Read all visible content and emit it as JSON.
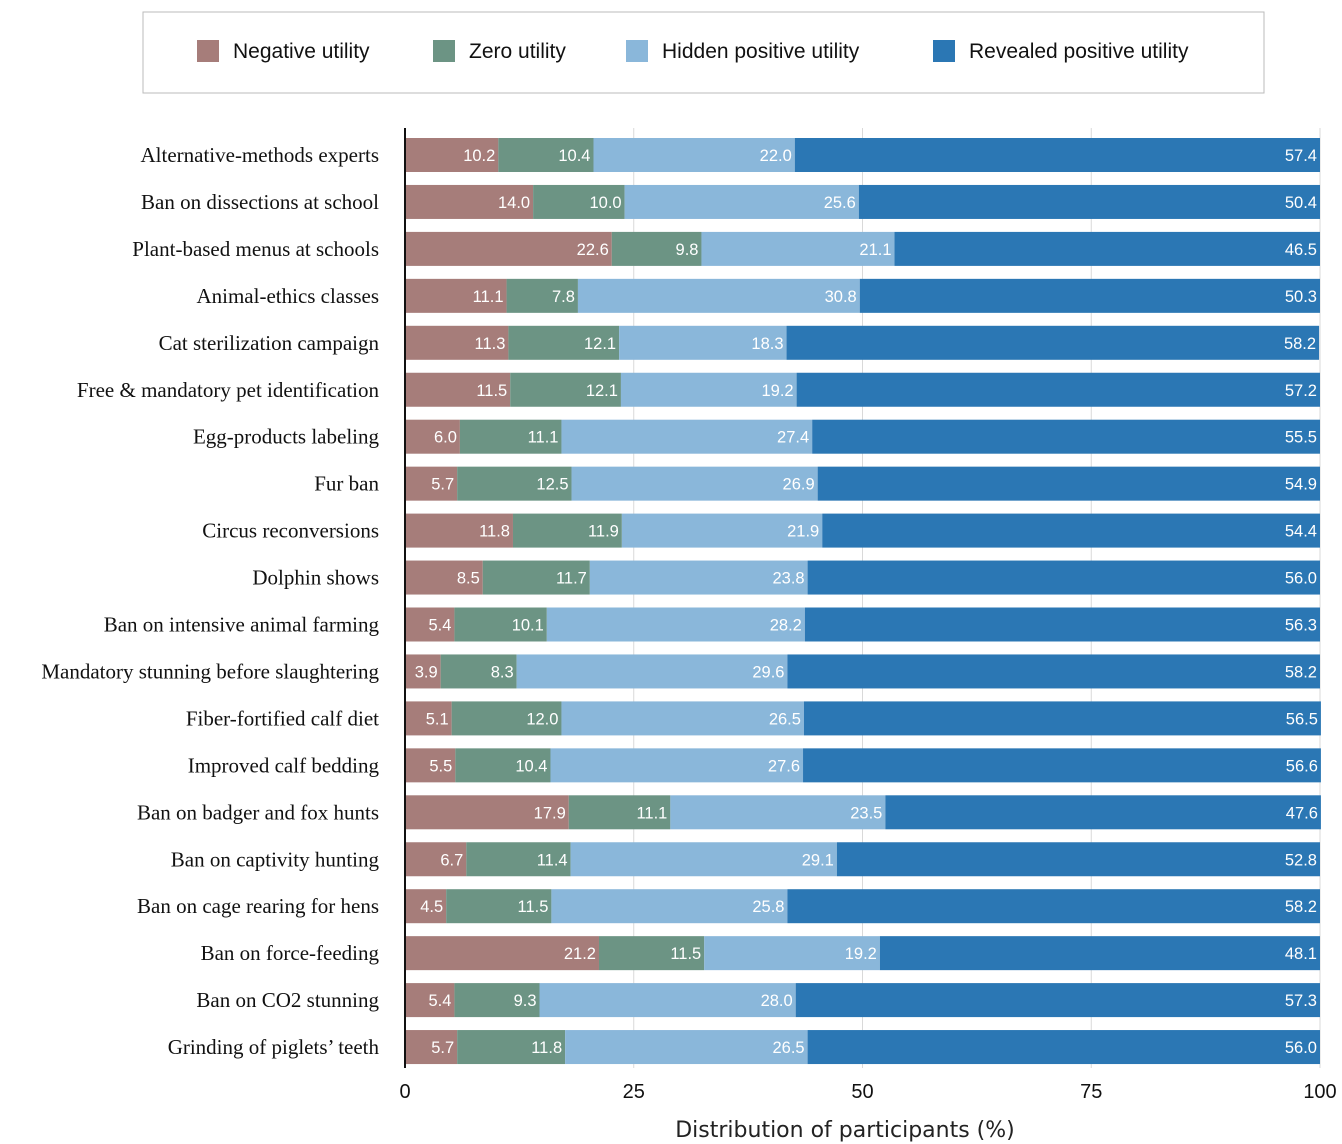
{
  "chart_data": {
    "type": "bar",
    "orientation": "horizontal",
    "stacked": true,
    "categories": [
      "Alternative-methods experts",
      "Ban on dissections at school",
      "Plant-based menus at schools",
      "Animal-ethics classes",
      "Cat sterilization campaign",
      "Free & mandatory pet identification",
      "Egg-products labeling",
      "Fur ban",
      "Circus reconversions",
      "Dolphin shows",
      "Ban on intensive animal farming",
      "Mandatory stunning before slaughtering",
      "Fiber-fortified calf diet",
      "Improved calf bedding",
      "Ban on badger and fox hunts",
      "Ban on captivity hunting",
      "Ban on cage rearing for hens",
      "Ban on force-feeding ",
      "Ban on CO2 stunning",
      "Grinding of piglets’ teeth"
    ],
    "series": [
      {
        "name": "Negative utility",
        "color": "#a67d7a",
        "values": [
          10.2,
          14.0,
          22.6,
          11.1,
          11.3,
          11.5,
          6.0,
          5.7,
          11.8,
          8.5,
          5.4,
          3.9,
          5.1,
          5.5,
          17.9,
          6.7,
          4.5,
          21.2,
          5.4,
          5.7
        ]
      },
      {
        "name": "Zero utility",
        "color": "#6c9484",
        "values": [
          10.4,
          10.0,
          9.8,
          7.8,
          12.1,
          12.1,
          11.1,
          12.5,
          11.9,
          11.7,
          10.1,
          8.3,
          12.0,
          10.4,
          11.1,
          11.4,
          11.5,
          11.5,
          9.3,
          11.8
        ]
      },
      {
        "name": "Hidden positive utility",
        "color": "#8ab7da",
        "values": [
          22.0,
          25.6,
          21.1,
          30.8,
          18.3,
          19.2,
          27.4,
          26.9,
          21.9,
          23.8,
          28.2,
          29.6,
          26.5,
          27.6,
          23.5,
          29.1,
          25.8,
          19.2,
          28.0,
          26.5
        ]
      },
      {
        "name": "Revealed positive utility",
        "color": "#2b77b4",
        "values": [
          57.4,
          50.4,
          46.5,
          50.3,
          58.2,
          57.2,
          55.5,
          54.9,
          54.4,
          56.0,
          56.3,
          58.2,
          56.5,
          56.6,
          47.6,
          52.8,
          58.2,
          48.1,
          57.3,
          56.0
        ]
      }
    ],
    "xlabel": "Distribution of participants (%)",
    "ylabel": "",
    "xlim": [
      0,
      100
    ],
    "xticks": [
      "0",
      "25",
      "50",
      "75",
      "100"
    ],
    "grid": true,
    "legend_position": "top"
  }
}
